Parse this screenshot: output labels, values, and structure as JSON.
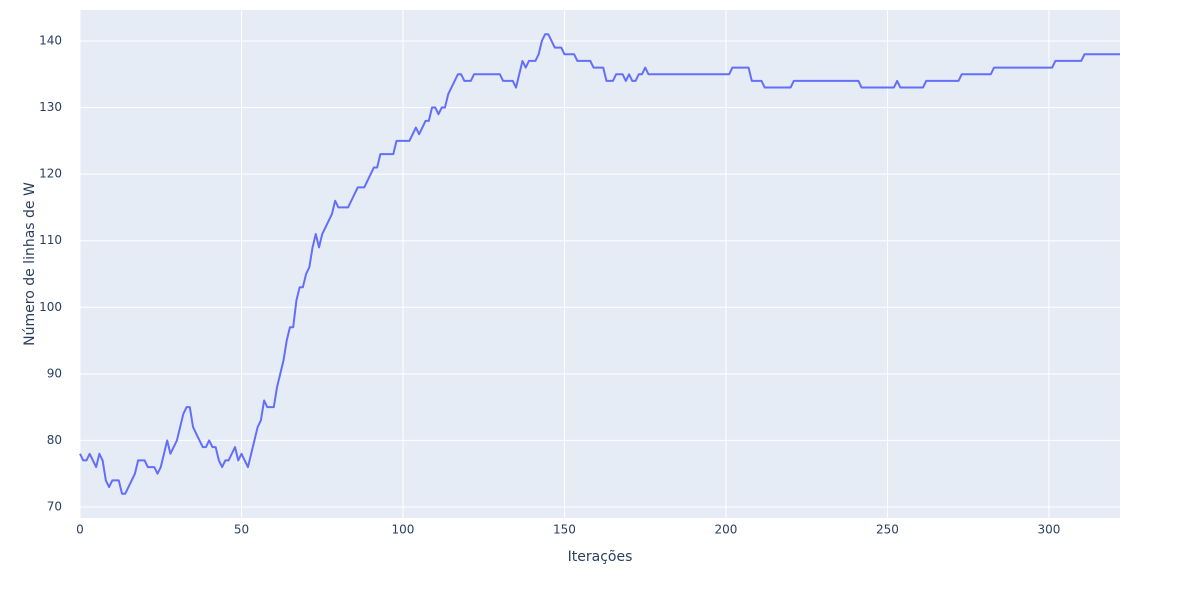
{
  "chart_data": {
    "type": "line",
    "x_label": "Iterações",
    "y_label": "Número de linhas de W",
    "color": "#636efa",
    "grid": true,
    "xlim": [
      0,
      322
    ],
    "ylim": [
      68.35,
      144.65
    ],
    "xticks": [
      0,
      50,
      100,
      150,
      200,
      250,
      300
    ],
    "yticks": [
      70,
      80,
      90,
      100,
      110,
      120,
      130,
      140
    ],
    "x": [
      0,
      1,
      2,
      3,
      4,
      5,
      6,
      7,
      8,
      9,
      10,
      11,
      12,
      13,
      14,
      15,
      16,
      17,
      18,
      19,
      20,
      21,
      22,
      23,
      24,
      25,
      26,
      27,
      28,
      29,
      30,
      31,
      32,
      33,
      34,
      35,
      36,
      37,
      38,
      39,
      40,
      41,
      42,
      43,
      44,
      45,
      46,
      47,
      48,
      49,
      50,
      51,
      52,
      53,
      54,
      55,
      56,
      57,
      58,
      59,
      60,
      61,
      62,
      63,
      64,
      65,
      66,
      67,
      68,
      69,
      70,
      71,
      72,
      73,
      74,
      75,
      76,
      77,
      78,
      79,
      80,
      81,
      82,
      83,
      84,
      85,
      86,
      87,
      88,
      89,
      90,
      91,
      92,
      93,
      94,
      95,
      96,
      97,
      98,
      99,
      100,
      101,
      102,
      103,
      104,
      105,
      106,
      107,
      108,
      109,
      110,
      111,
      112,
      113,
      114,
      115,
      116,
      117,
      118,
      119,
      120,
      121,
      122,
      123,
      124,
      125,
      126,
      127,
      128,
      129,
      130,
      131,
      132,
      133,
      134,
      135,
      136,
      137,
      138,
      139,
      140,
      141,
      142,
      143,
      144,
      145,
      146,
      147,
      148,
      149,
      150,
      151,
      152,
      153,
      154,
      155,
      156,
      157,
      158,
      159,
      160,
      161,
      162,
      163,
      164,
      165,
      166,
      167,
      168,
      169,
      170,
      171,
      172,
      173,
      174,
      175,
      176,
      177,
      178,
      179,
      180,
      181,
      182,
      183,
      184,
      185,
      186,
      187,
      188,
      189,
      190,
      191,
      192,
      193,
      194,
      195,
      196,
      197,
      198,
      199,
      200,
      201,
      202,
      203,
      204,
      205,
      206,
      207,
      208,
      209,
      210,
      211,
      212,
      213,
      214,
      215,
      216,
      217,
      218,
      219,
      220,
      221,
      222,
      223,
      224,
      225,
      226,
      227,
      228,
      229,
      230,
      231,
      232,
      233,
      234,
      235,
      236,
      237,
      238,
      239,
      240,
      241,
      242,
      243,
      244,
      245,
      246,
      247,
      248,
      249,
      250,
      251,
      252,
      253,
      254,
      255,
      256,
      257,
      258,
      259,
      260,
      261,
      262,
      263,
      264,
      265,
      266,
      267,
      268,
      269,
      270,
      271,
      272,
      273,
      274,
      275,
      276,
      277,
      278,
      279,
      280,
      281,
      282,
      283,
      284,
      285,
      286,
      287,
      288,
      289,
      290,
      291,
      292,
      293,
      294,
      295,
      296,
      297,
      298,
      299,
      300,
      301,
      302,
      303,
      304,
      305,
      306,
      307,
      308,
      309,
      310,
      311,
      312,
      313,
      314,
      315,
      316,
      317,
      318,
      319,
      320,
      321,
      322
    ],
    "values": [
      78,
      77,
      77,
      78,
      77,
      76,
      78,
      77,
      74,
      73,
      74,
      74,
      74,
      72,
      72,
      73,
      74,
      75,
      77,
      77,
      77,
      76,
      76,
      76,
      75,
      76,
      78,
      80,
      78,
      79,
      80,
      82,
      84,
      85,
      85,
      82,
      81,
      80,
      79,
      79,
      80,
      79,
      79,
      77,
      76,
      77,
      77,
      78,
      79,
      77,
      78,
      77,
      76,
      78,
      80,
      82,
      83,
      86,
      85,
      85,
      85,
      88,
      90,
      92,
      95,
      97,
      97,
      101,
      103,
      103,
      105,
      106,
      109,
      111,
      109,
      111,
      112,
      113,
      114,
      116,
      115,
      115,
      115,
      115,
      116,
      117,
      118,
      118,
      118,
      119,
      120,
      121,
      121,
      123,
      123,
      123,
      123,
      123,
      125,
      125,
      125,
      125,
      125,
      126,
      127,
      126,
      127,
      128,
      128,
      130,
      130,
      129,
      130,
      130,
      132,
      133,
      134,
      135,
      135,
      134,
      134,
      134,
      135,
      135,
      135,
      135,
      135,
      135,
      135,
      135,
      135,
      134,
      134,
      134,
      134,
      133,
      135,
      137,
      136,
      137,
      137,
      137,
      138,
      140,
      141,
      141,
      140,
      139,
      139,
      139,
      138,
      138,
      138,
      138,
      137,
      137,
      137,
      137,
      137,
      136,
      136,
      136,
      136,
      134,
      134,
      134,
      135,
      135,
      135,
      134,
      135,
      134,
      134,
      135,
      135,
      136,
      135,
      135,
      135,
      135,
      135,
      135,
      135,
      135,
      135,
      135,
      135,
      135,
      135,
      135,
      135,
      135,
      135,
      135,
      135,
      135,
      135,
      135,
      135,
      135,
      135,
      135,
      136,
      136,
      136,
      136,
      136,
      136,
      134,
      134,
      134,
      134,
      133,
      133,
      133,
      133,
      133,
      133,
      133,
      133,
      133,
      134,
      134,
      134,
      134,
      134,
      134,
      134,
      134,
      134,
      134,
      134,
      134,
      134,
      134,
      134,
      134,
      134,
      134,
      134,
      134,
      134,
      133,
      133,
      133,
      133,
      133,
      133,
      133,
      133,
      133,
      133,
      133,
      134,
      133,
      133,
      133,
      133,
      133,
      133,
      133,
      133,
      134,
      134,
      134,
      134,
      134,
      134,
      134,
      134,
      134,
      134,
      134,
      135,
      135,
      135,
      135,
      135,
      135,
      135,
      135,
      135,
      135,
      136,
      136,
      136,
      136,
      136,
      136,
      136,
      136,
      136,
      136,
      136,
      136,
      136,
      136,
      136,
      136,
      136,
      136,
      136,
      137,
      137,
      137,
      137,
      137,
      137,
      137,
      137,
      137,
      138,
      138,
      138,
      138,
      138,
      138,
      138,
      138,
      138,
      138,
      138,
      138
    ]
  }
}
